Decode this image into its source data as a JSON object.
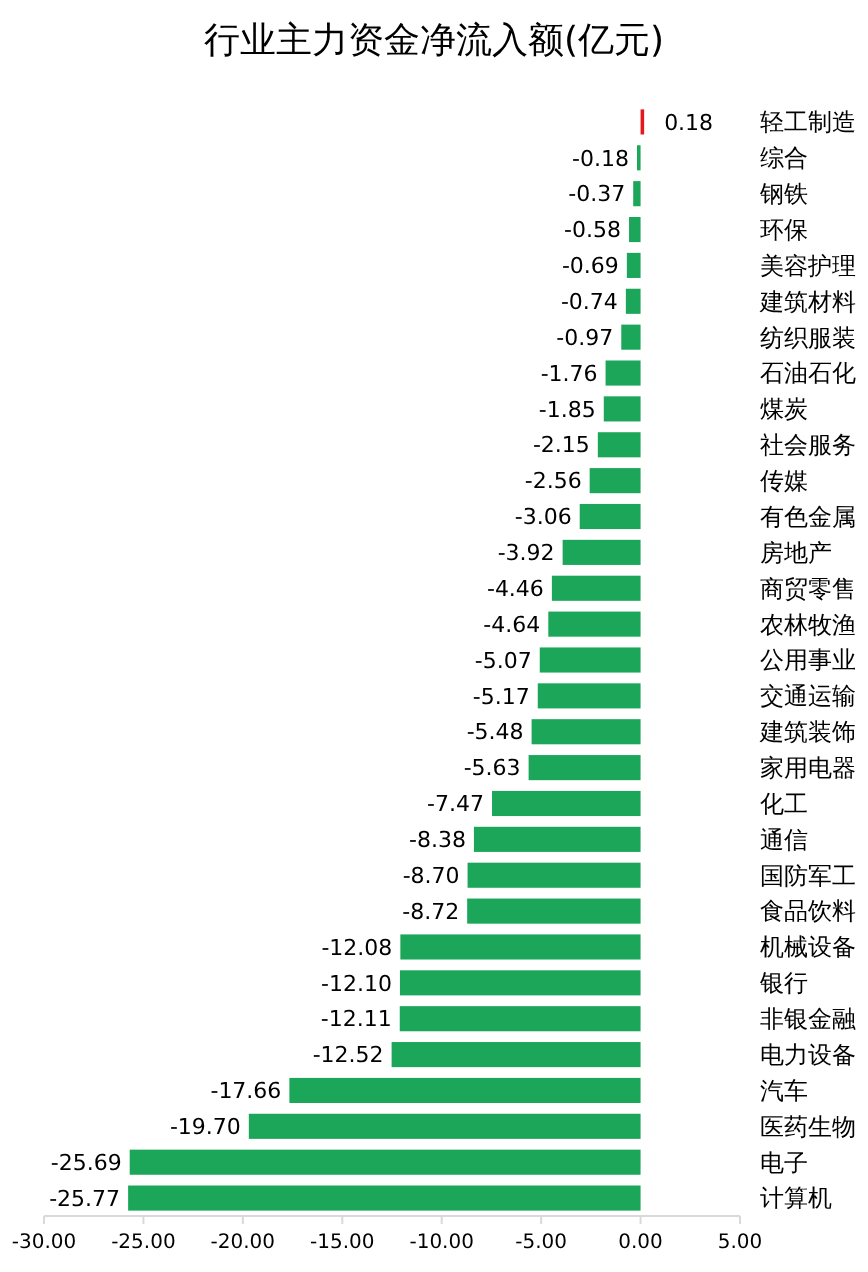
{
  "chart_data": {
    "type": "bar",
    "orientation": "horizontal",
    "title": "行业主力资金净流入额(亿元)",
    "categories": [
      "轻工制造",
      "综合",
      "钢铁",
      "环保",
      "美容护理",
      "建筑材料",
      "纺织服装",
      "石油石化",
      "煤炭",
      "社会服务",
      "传媒",
      "有色金属",
      "房地产",
      "商贸零售",
      "农林牧渔",
      "公用事业",
      "交通运输",
      "建筑装饰",
      "家用电器",
      "化工",
      "通信",
      "国防军工",
      "食品饮料",
      "机械设备",
      "银行",
      "非银金融",
      "电力设备",
      "汽车",
      "医药生物",
      "电子",
      "计算机"
    ],
    "values": [
      0.18,
      -0.18,
      -0.37,
      -0.58,
      -0.69,
      -0.74,
      -0.97,
      -1.76,
      -1.85,
      -2.15,
      -2.56,
      -3.06,
      -3.92,
      -4.46,
      -4.64,
      -5.07,
      -5.17,
      -5.48,
      -5.63,
      -7.47,
      -8.38,
      -8.7,
      -8.72,
      -12.08,
      -12.1,
      -12.11,
      -12.52,
      -17.66,
      -19.7,
      -25.69,
      -25.77
    ],
    "value_labels": [
      "0.18",
      "-0.18",
      "-0.37",
      "-0.58",
      "-0.69",
      "-0.74",
      "-0.97",
      "-1.76",
      "-1.85",
      "-2.15",
      "-2.56",
      "-3.06",
      "-3.92",
      "-4.46",
      "-4.64",
      "-5.07",
      "-5.17",
      "-5.48",
      "-5.63",
      "-7.47",
      "-8.38",
      "-8.70",
      "-8.72",
      "-12.08",
      "-12.10",
      "-12.11",
      "-12.52",
      "-17.66",
      "-19.70",
      "-25.69",
      "-25.77"
    ],
    "colors": [
      "#e31a1c",
      "#1ba65a",
      "#1ba65a",
      "#1ba65a",
      "#1ba65a",
      "#1ba65a",
      "#1ba65a",
      "#1ba65a",
      "#1ba65a",
      "#1ba65a",
      "#1ba65a",
      "#1ba65a",
      "#1ba65a",
      "#1ba65a",
      "#1ba65a",
      "#1ba65a",
      "#1ba65a",
      "#1ba65a",
      "#1ba65a",
      "#1ba65a",
      "#1ba65a",
      "#1ba65a",
      "#1ba65a",
      "#1ba65a",
      "#1ba65a",
      "#1ba65a",
      "#1ba65a",
      "#1ba65a",
      "#1ba65a",
      "#1ba65a",
      "#1ba65a"
    ],
    "xlim": [
      -30,
      5
    ],
    "xticks": [
      {
        "value": -30,
        "label": "-30.00"
      },
      {
        "value": -25,
        "label": "-25.00"
      },
      {
        "value": -20,
        "label": "-20.00"
      },
      {
        "value": -15,
        "label": "-15.00"
      },
      {
        "value": -10,
        "label": "-10.00"
      },
      {
        "value": -5,
        "label": "-5.00"
      },
      {
        "value": 0,
        "label": "0.00"
      },
      {
        "value": 5,
        "label": "5.00"
      }
    ]
  }
}
